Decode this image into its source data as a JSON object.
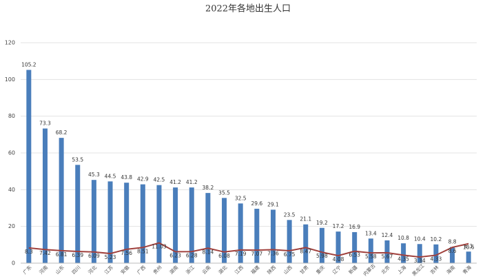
{
  "chart_data": {
    "type": "bar",
    "title": "2022年各地出生人口",
    "categories": [
      "广东",
      "河南",
      "山东",
      "四川",
      "河北",
      "江苏",
      "安徽",
      "广西",
      "贵州",
      "湖南",
      "浙江",
      "云南",
      "湖北",
      "江西",
      "福建",
      "陕西",
      "山西",
      "甘肃",
      "重庆",
      "辽宁",
      "新疆",
      "内蒙古",
      "北京",
      "上海",
      "黑龙江",
      "吉林",
      "海南",
      "青海"
    ],
    "series": [
      {
        "type": "bar",
        "color": "#4a7ebb",
        "values": [
          105.2,
          73.3,
          68.2,
          53.5,
          45.3,
          44.5,
          43.8,
          42.9,
          42.5,
          41.2,
          41.2,
          38.2,
          35.5,
          32.5,
          29.6,
          29.1,
          23.5,
          21.1,
          19.2,
          17.2,
          16.9,
          13.4,
          12.4,
          10.8,
          10.4,
          10.2,
          8.8,
          6.3
        ]
      },
      {
        "type": "line",
        "color": "#a0403c",
        "values": [
          8.3,
          7.42,
          6.81,
          6.39,
          6.09,
          5.23,
          7.56,
          8.51,
          11.03,
          6.23,
          6.28,
          8.14,
          6.08,
          7.19,
          7.07,
          7.36,
          6.75,
          8.47,
          5.98,
          4.08,
          6.53,
          5.58,
          5.67,
          4.35,
          3.34,
          4.33,
          8.6,
          10.6
        ]
      }
    ],
    "ylim": [
      0,
      120
    ],
    "yticks": [
      0,
      20,
      40,
      60,
      80,
      100,
      120
    ],
    "grid": true
  }
}
